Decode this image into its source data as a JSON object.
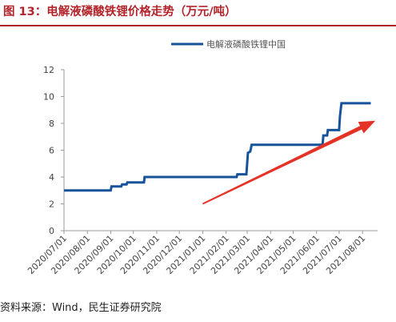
{
  "figure": {
    "title": "图 13：电解液磷酸铁锂价格走势（万元/吨）",
    "source": "资料来源：Wind，民生证券研究院"
  },
  "colors": {
    "title": "#b3242a",
    "rule": "#b3242a",
    "series": "#17539a",
    "arrow": "#e53226",
    "axis": "#9a9a9a"
  },
  "chart_data": {
    "type": "line",
    "title": "",
    "xlabel": "",
    "ylabel": "",
    "ylim": [
      0,
      12
    ],
    "yticks": [
      0,
      2,
      4,
      6,
      8,
      10,
      12
    ],
    "xticks": [
      "2020/07/01",
      "2020/08/01",
      "2020/09/01",
      "2020/10/01",
      "2020/11/01",
      "2020/12/01",
      "2021/01/01",
      "2021/02/01",
      "2021/03/01",
      "2021/04/01",
      "2021/05/01",
      "2021/06/01",
      "2021/07/01",
      "2021/08/01"
    ],
    "legend": "top-right",
    "grid": false,
    "series": [
      {
        "name": "电解液磷酸铁锂中国",
        "points": [
          [
            "2020-07-01",
            3.0
          ],
          [
            "2020-09-01",
            3.0
          ],
          [
            "2020-09-02",
            3.3
          ],
          [
            "2020-09-15",
            3.3
          ],
          [
            "2020-09-16",
            3.45
          ],
          [
            "2020-09-22",
            3.45
          ],
          [
            "2020-09-23",
            3.6
          ],
          [
            "2020-10-15",
            3.6
          ],
          [
            "2020-10-16",
            4.0
          ],
          [
            "2021-02-15",
            4.0
          ],
          [
            "2021-02-16",
            4.2
          ],
          [
            "2021-02-28",
            4.2
          ],
          [
            "2021-03-02",
            5.8
          ],
          [
            "2021-03-05",
            5.9
          ],
          [
            "2021-03-07",
            6.4
          ],
          [
            "2021-06-09",
            6.4
          ],
          [
            "2021-06-10",
            7.1
          ],
          [
            "2021-06-15",
            7.1
          ],
          [
            "2021-06-16",
            7.5
          ],
          [
            "2021-07-01",
            7.5
          ],
          [
            "2021-07-02",
            8.5
          ],
          [
            "2021-07-04",
            9.5
          ],
          [
            "2021-08-12",
            9.5
          ]
        ]
      }
    ],
    "annotations": [
      {
        "type": "arrow",
        "from": [
          "2021-01-01",
          2.0
        ],
        "to": [
          "2021-08-18",
          8.2
        ]
      }
    ]
  }
}
